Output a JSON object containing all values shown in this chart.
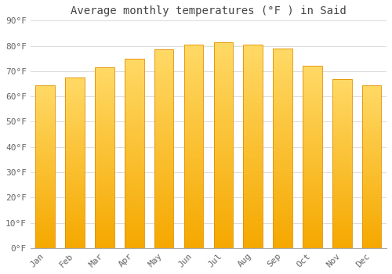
{
  "title": "Average monthly temperatures (°F ) in Said",
  "months": [
    "Jan",
    "Feb",
    "Mar",
    "Apr",
    "May",
    "Jun",
    "Jul",
    "Aug",
    "Sep",
    "Oct",
    "Nov",
    "Dec"
  ],
  "values": [
    64.5,
    67.5,
    71.5,
    75,
    78.5,
    80.5,
    81.5,
    80.5,
    79,
    72,
    67,
    64.5
  ],
  "ylim": [
    0,
    90
  ],
  "yticks": [
    0,
    10,
    20,
    30,
    40,
    50,
    60,
    70,
    80,
    90
  ],
  "ytick_labels": [
    "0°F",
    "10°F",
    "20°F",
    "30°F",
    "40°F",
    "50°F",
    "60°F",
    "70°F",
    "80°F",
    "90°F"
  ],
  "bar_color_bottom": "#F5A800",
  "bar_color_top": "#FFD966",
  "bar_edge_color": "#E09000",
  "background_color": "#FFFFFF",
  "plot_bg_color": "#FFFFFF",
  "grid_color": "#DDDDDD",
  "title_fontsize": 10,
  "tick_fontsize": 8,
  "font_family": "monospace",
  "title_color": "#444444",
  "tick_color": "#666666"
}
